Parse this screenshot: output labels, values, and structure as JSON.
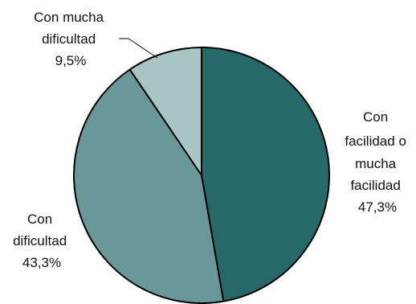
{
  "chart_data": {
    "type": "pie",
    "start_angle_deg": 90,
    "direction": "clockwise",
    "slices": [
      {
        "label_lines": [
          "Con",
          "facilidad o",
          "mucha",
          "facilidad"
        ],
        "value_label": "47,3%",
        "value": 47.3,
        "color": "#276868"
      },
      {
        "label_lines": [
          "Con",
          "dificultad"
        ],
        "value_label": "43,3%",
        "value": 43.3,
        "color": "#6a9898"
      },
      {
        "label_lines": [
          "Con mucha",
          "dificultad"
        ],
        "value_label": "9,5%",
        "value": 9.5,
        "color": "#a9c4c4"
      }
    ],
    "legend": "none"
  }
}
